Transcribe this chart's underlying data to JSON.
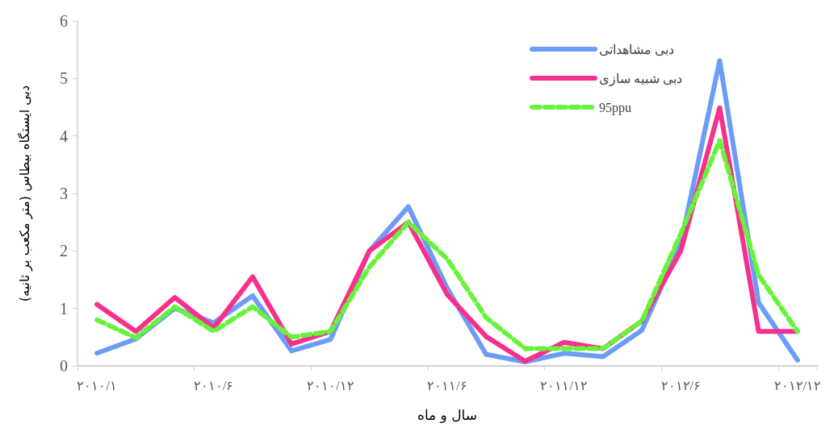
{
  "chart_data": {
    "type": "line",
    "xlabel": "سال و ماه",
    "ylabel": "دبی ایستگاه بیطاس (متر مکعب بر ثانیه)",
    "categories": [
      "۲۰۱۰/۱",
      null,
      null,
      "۲۰۱۰/۶",
      null,
      null,
      "۲۰۱۰/۱۲",
      null,
      null,
      "۲۰۱۱/۶",
      null,
      null,
      "۲۰۱۱/۱۲",
      null,
      null,
      "۲۰۱۲/۶",
      null,
      null,
      "۲۰۱۲/۱۲"
    ],
    "series": [
      {
        "name": "دبی مشاهداتی",
        "color": "#6c9cf7",
        "line_style": "solid",
        "values": [
          0.22,
          0.47,
          1.0,
          0.75,
          1.22,
          0.26,
          0.46,
          2.0,
          2.77,
          1.35,
          0.2,
          0.07,
          0.22,
          0.16,
          0.62,
          2.12,
          5.31,
          1.1,
          0.1
        ]
      },
      {
        "name": "دبی شبیه سازی",
        "color": "#f7308c",
        "line_style": "solid",
        "values": [
          1.07,
          0.6,
          1.19,
          0.66,
          1.55,
          0.38,
          0.6,
          2.0,
          2.5,
          1.24,
          0.51,
          0.08,
          0.41,
          0.3,
          0.78,
          2.0,
          4.49,
          0.6,
          0.6
        ]
      },
      {
        "name": "95ppu",
        "color": "#66f33a",
        "line_style": "dashed",
        "values": [
          0.8,
          0.49,
          1.03,
          0.6,
          1.03,
          0.5,
          0.6,
          1.72,
          2.5,
          1.86,
          0.84,
          0.3,
          0.3,
          0.3,
          0.78,
          2.3,
          3.92,
          1.58,
          0.6
        ]
      }
    ],
    "ylim": [
      0,
      6
    ],
    "yticks": [
      0,
      1,
      2,
      3,
      4,
      5,
      6
    ],
    "grid": false,
    "legend": "top right",
    "marker": "none"
  }
}
